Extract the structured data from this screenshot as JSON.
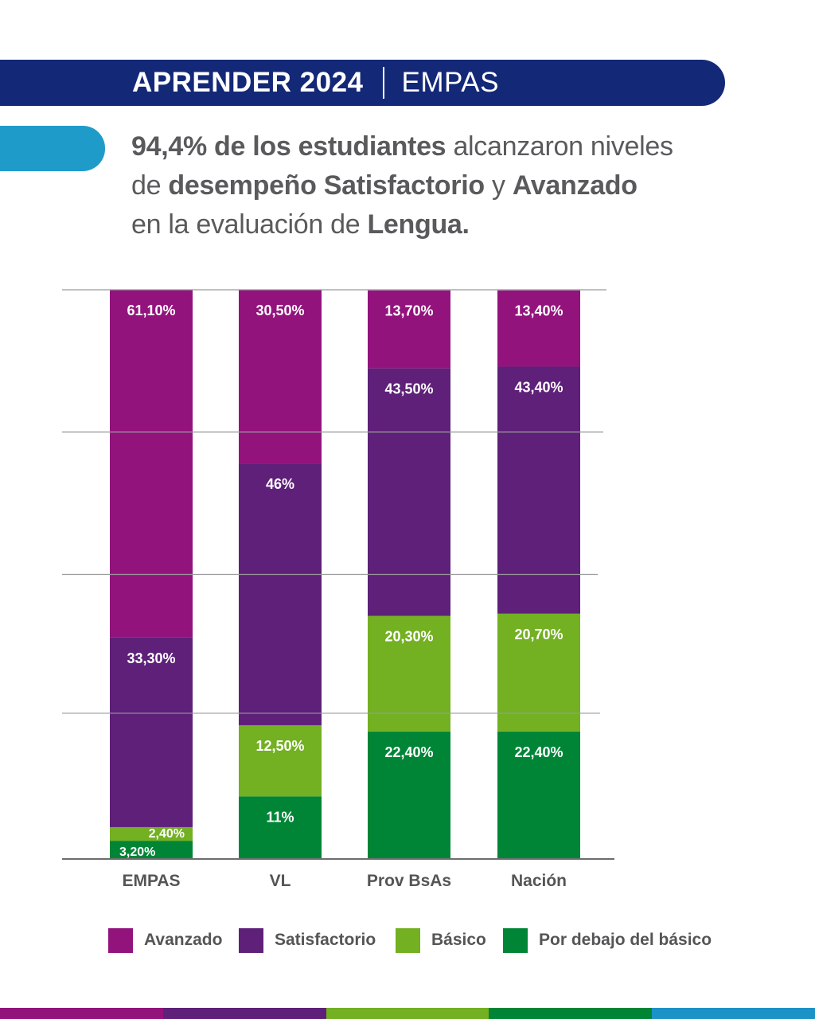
{
  "banner": {
    "title_bold": "APRENDER 2024",
    "title_light": "EMPAS"
  },
  "headline": {
    "line1_bold": "94,4% de los estudiantes",
    "line1_rest": " alcanzaron niveles",
    "line2_pre": "de ",
    "line2_bold1": "desempeño Satisfactorio",
    "line2_mid": " y ",
    "line2_bold2": "Avanzado",
    "line3_pre": "en la evaluación de ",
    "line3_bold": "Lengua."
  },
  "colors": {
    "banner": "#142878",
    "accent": "#1f9bca",
    "avanzado": "#93137d",
    "satisfactorio": "#5e2079",
    "basico": "#73b022",
    "por_debajo": "#008536"
  },
  "chart_data": {
    "type": "bar",
    "stacked": true,
    "title": "",
    "xlabel": "",
    "ylabel": "",
    "ylim": [
      0,
      100
    ],
    "grid": true,
    "categories": [
      "EMPAS",
      "VL",
      "Prov BsAs",
      "Nación"
    ],
    "series": [
      {
        "key": "por_debajo",
        "name": "Por debajo del básico",
        "values": [
          3.2,
          11,
          22.4,
          22.4
        ],
        "labels": [
          "3,20%",
          "11%",
          "22,40%",
          "22,40%"
        ]
      },
      {
        "key": "basico",
        "name": "Básico",
        "values": [
          2.4,
          12.5,
          20.3,
          20.7
        ],
        "labels": [
          "2,40%",
          "12,50%",
          "20,30%",
          "20,70%"
        ]
      },
      {
        "key": "satisfactorio",
        "name": "Satisfactorio",
        "values": [
          33.3,
          46,
          43.5,
          43.4
        ],
        "labels": [
          "33,30%",
          "46%",
          "43,50%",
          "43,40%"
        ]
      },
      {
        "key": "avanzado",
        "name": "Avanzado",
        "values": [
          61.1,
          30.5,
          13.7,
          13.4
        ],
        "labels": [
          "61,10%",
          "30,50%",
          "13,70%",
          "13,40%"
        ]
      }
    ],
    "legend_position": "bottom",
    "legend": [
      "Avanzado",
      "Satisfactorio",
      "Básico",
      "Por debajo del básico"
    ]
  },
  "legend": [
    {
      "label": "Avanzado",
      "key": "avanzado"
    },
    {
      "label": "Satisfactorio",
      "key": "satisfactorio"
    },
    {
      "label": "Básico",
      "key": "basico"
    },
    {
      "label": "Por debajo del básico",
      "key": "por_debajo"
    }
  ],
  "stripe": [
    "#93137d",
    "#5e2079",
    "#73b022",
    "#008536",
    "#1b93c7"
  ]
}
